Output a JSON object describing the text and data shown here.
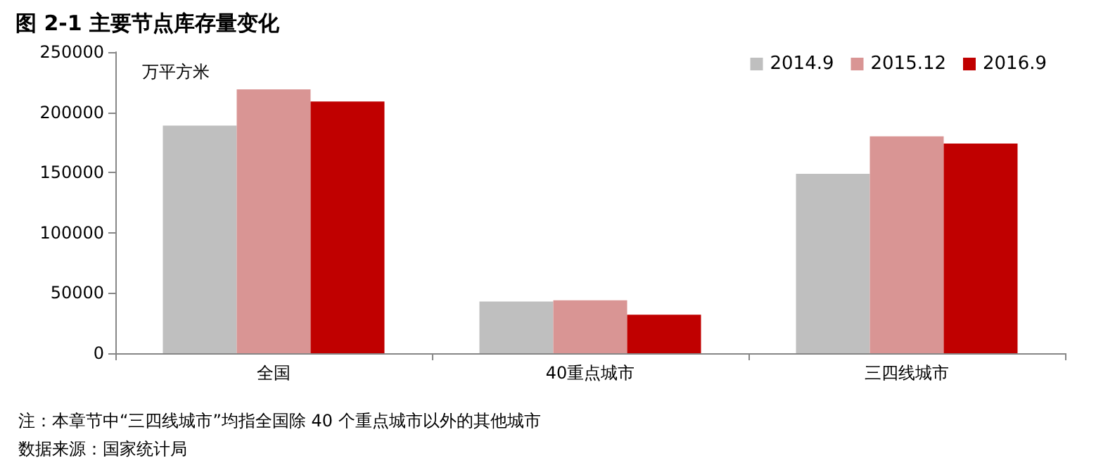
{
  "chart_data": {
    "type": "bar",
    "title": "图 2-1 主要节点库存量变化",
    "ylabel": "万平方米",
    "categories": [
      "全国",
      "40重点城市",
      "三四线城市"
    ],
    "series": [
      {
        "name": "2014.9",
        "color": "#bfbfbf",
        "values": [
          189000,
          43000,
          149000
        ]
      },
      {
        "name": "2015.12",
        "color": "#d99594",
        "values": [
          219000,
          44000,
          180000
        ]
      },
      {
        "name": "2016.9",
        "color": "#c00000",
        "values": [
          209000,
          32000,
          174000
        ]
      }
    ],
    "ylim": [
      0,
      250000
    ],
    "yticks": [
      0,
      50000,
      100000,
      150000,
      200000,
      250000
    ],
    "grid": false,
    "legend": "top right",
    "annotations": [
      "注：本章节中“三四线城市”均指全国除 40 个重点城市以外的其他城市",
      "数据来源：国家统计局"
    ]
  }
}
